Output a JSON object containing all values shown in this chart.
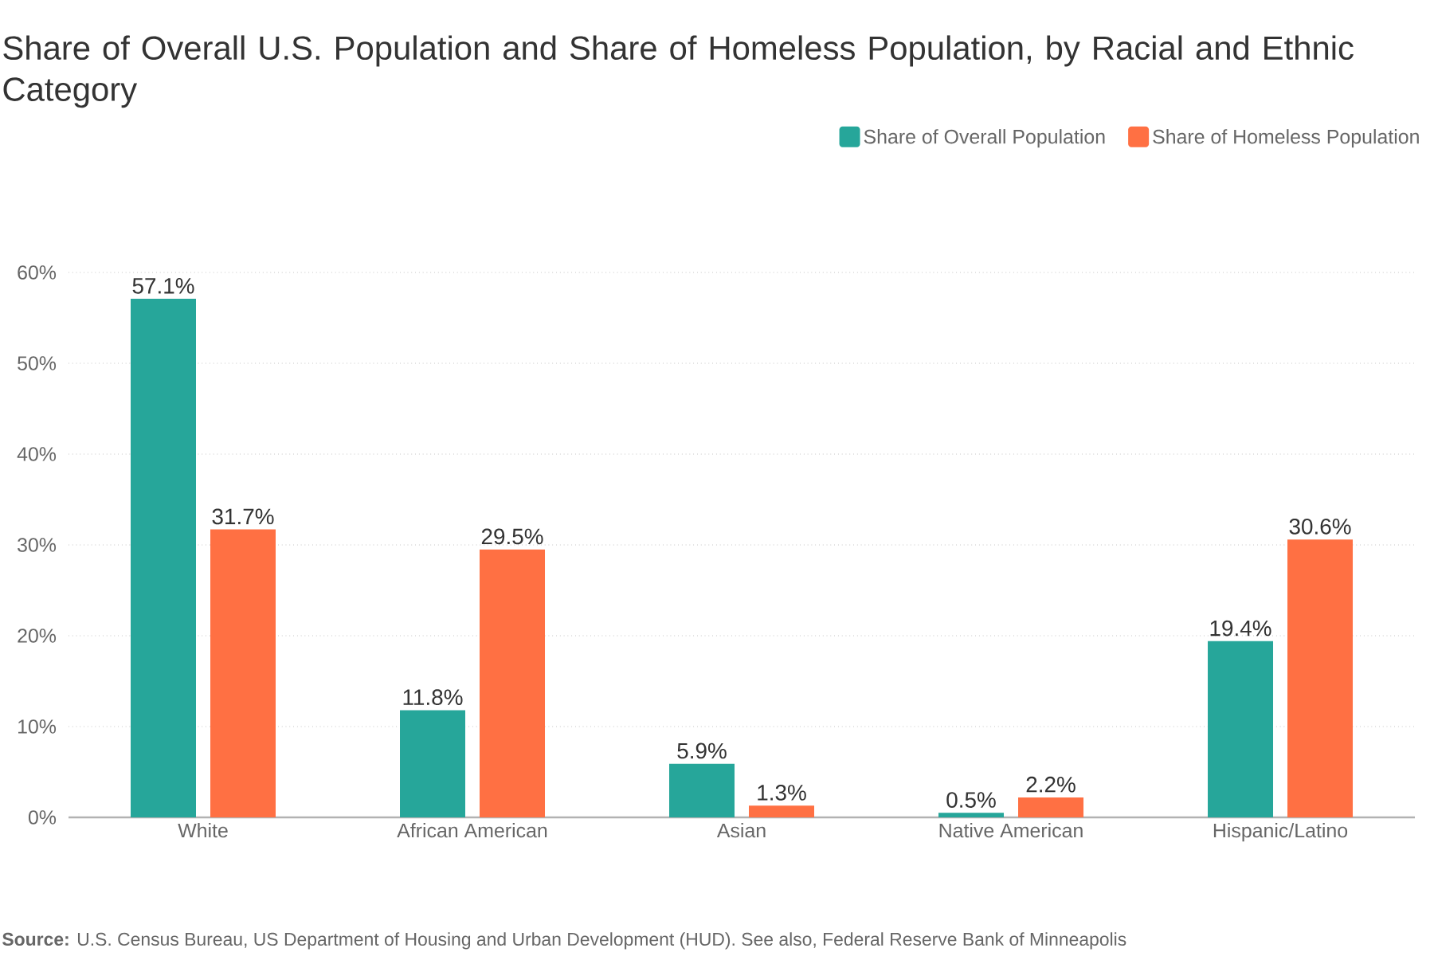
{
  "chart_data": {
    "type": "bar",
    "title": "Share of Overall U.S. Population and Share of Homeless Population, by Racial and Ethnic Category",
    "categories": [
      "White",
      "African American",
      "Asian",
      "Native American",
      "Hispanic/Latino"
    ],
    "series": [
      {
        "name": "Share of Overall Population",
        "color": "#26a69a",
        "values": [
          57.1,
          11.8,
          5.9,
          0.5,
          19.4
        ],
        "value_labels": [
          "57.1%",
          "11.8%",
          "5.9%",
          "0.5%",
          "19.4%"
        ]
      },
      {
        "name": "Share of Homeless Population",
        "color": "#ff7043",
        "values": [
          31.7,
          29.5,
          1.3,
          2.2,
          30.6
        ],
        "value_labels": [
          "31.7%",
          "29.5%",
          "1.3%",
          "2.2%",
          "30.6%"
        ]
      }
    ],
    "ylim": [
      0,
      60
    ],
    "yticks": [
      {
        "value": 0,
        "label": "0%"
      },
      {
        "value": 10,
        "label": "10%"
      },
      {
        "value": 20,
        "label": "20%"
      },
      {
        "value": 30,
        "label": "30%"
      },
      {
        "value": 40,
        "label": "40%"
      },
      {
        "value": 50,
        "label": "50%"
      },
      {
        "value": 60,
        "label": "60%"
      }
    ],
    "grid": "y",
    "legend": "top right",
    "annotations": [
      "**Source:** U.S. Census Bureau, US Department of Housing and Urban Development (HUD). See also, Federal Reserve Bank of Minneapolis"
    ]
  }
}
